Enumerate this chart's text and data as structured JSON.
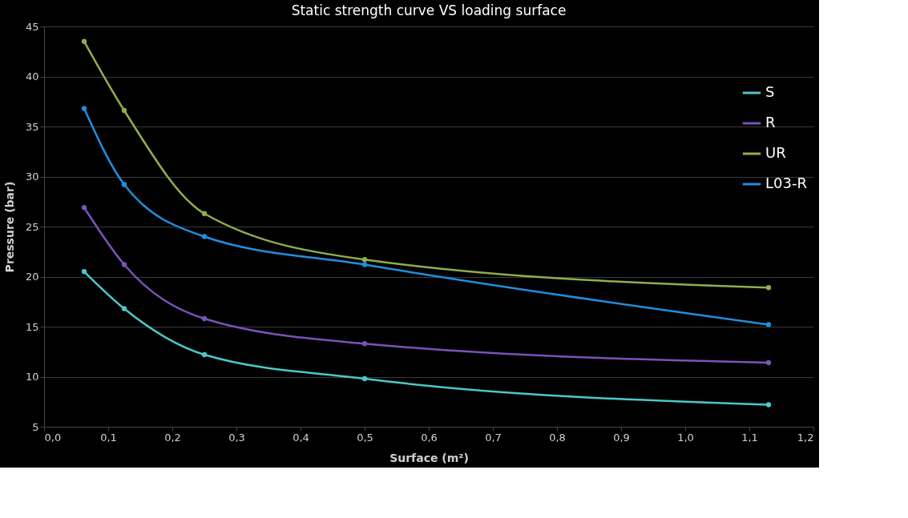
{
  "chart_data": {
    "type": "line",
    "title": "Static strength curve VS loading surface",
    "xlabel": "Surface (m²)",
    "ylabel": "Pressure (bar)",
    "x": [
      0.0625,
      0.125,
      0.25,
      0.5,
      1.13
    ],
    "series": [
      {
        "name": "S",
        "color": "#4bc8c8",
        "values": [
          20.5,
          16.8,
          12.2,
          9.8,
          7.2
        ]
      },
      {
        "name": "R",
        "color": "#7a52b8",
        "values": [
          26.9,
          21.2,
          15.8,
          13.3,
          11.4
        ]
      },
      {
        "name": "UR",
        "color": "#8fae4e",
        "values": [
          43.5,
          36.6,
          26.3,
          21.7,
          18.9
        ]
      },
      {
        "name": "L03-R",
        "color": "#1f8fe0",
        "values": [
          36.8,
          29.2,
          24.0,
          21.2,
          15.2
        ]
      }
    ],
    "xlim": [
      0,
      1.2
    ],
    "xticks": [
      {
        "value": 0,
        "label": "0,0"
      },
      {
        "value": 0.1,
        "label": "0,1"
      },
      {
        "value": 0.2,
        "label": "0,2"
      },
      {
        "value": 0.3,
        "label": "0,3"
      },
      {
        "value": 0.4,
        "label": "0,4"
      },
      {
        "value": 0.5,
        "label": "0,5"
      },
      {
        "value": 0.6,
        "label": "0,6"
      },
      {
        "value": 0.7,
        "label": "0,7"
      },
      {
        "value": 0.8,
        "label": "0,8"
      },
      {
        "value": 0.9,
        "label": "0,9"
      },
      {
        "value": 1.0,
        "label": "1,0"
      },
      {
        "value": 1.1,
        "label": "1,1"
      },
      {
        "value": 1.2,
        "label": "1,2"
      }
    ],
    "ylim": [
      5,
      45
    ],
    "yticks": [
      5,
      10,
      15,
      20,
      25,
      30,
      35,
      40,
      45
    ],
    "grid": "y",
    "legend": "top right",
    "marker": "circle",
    "line_style": "solid"
  }
}
